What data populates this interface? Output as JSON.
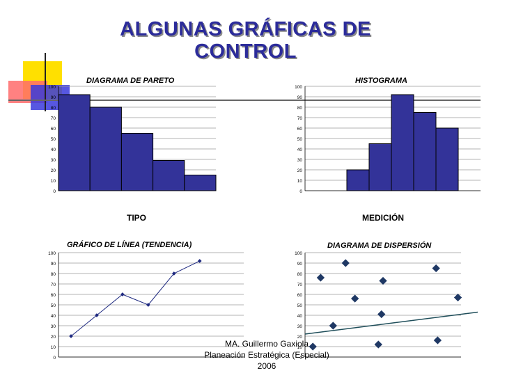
{
  "slide": {
    "title_line1": "ALGUNAS GRÁFICAS DE",
    "title_line2": "CONTROL",
    "footer_line1": "MA. Guillermo Gaxiola",
    "footer_line2": "Planeación Estratégica (Especial)",
    "footer_line3": "2006",
    "colors": {
      "title": "#2b2b9a",
      "bars": "#333399",
      "points": "#1f3864",
      "deco_yellow": "#ffe000",
      "deco_red": "#ff5a5a",
      "deco_blue": "#3333cc"
    }
  },
  "chart_data": [
    {
      "type": "bar",
      "title": "DIAGRAMA DE PARETO",
      "xlabel": "TIPO",
      "ylabel": "",
      "ylim": [
        0,
        100
      ],
      "ticks": [
        "0",
        "10",
        "20",
        "30",
        "40",
        "50",
        "60",
        "70",
        "80",
        "90",
        "100"
      ],
      "values": [
        92,
        80,
        55,
        29,
        15
      ]
    },
    {
      "type": "bar",
      "title": "HISTOGRAMA",
      "xlabel": "MEDICIÓN",
      "ylabel": "",
      "ylim": [
        0,
        100
      ],
      "ticks": [
        "0",
        "10",
        "20",
        "30",
        "40",
        "50",
        "60",
        "70",
        "80",
        "90",
        "100"
      ],
      "values": [
        20,
        45,
        92,
        75,
        60
      ]
    },
    {
      "type": "line",
      "title": "GRÁFICO DE LÍNEA (TENDENCIA)",
      "xlabel": "",
      "ylabel": "",
      "ylim": [
        0,
        100
      ],
      "ticks": [
        "0",
        "10",
        "20",
        "30",
        "40",
        "50",
        "60",
        "70",
        "80",
        "90",
        "100"
      ],
      "x": [
        1,
        2,
        3,
        4,
        5,
        6
      ],
      "values": [
        20,
        40,
        60,
        50,
        80,
        92
      ]
    },
    {
      "type": "scatter",
      "title": "DIAGRAMA DE DISPERSIÓN",
      "xlabel": "",
      "ylabel": "",
      "ylim": [
        0,
        100
      ],
      "xlim": [
        0,
        10
      ],
      "ticks": [
        "0",
        "10",
        "20",
        "30",
        "40",
        "50",
        "60",
        "70",
        "80",
        "90",
        "100"
      ],
      "points": [
        [
          0.5,
          10
        ],
        [
          1,
          76
        ],
        [
          1.8,
          30
        ],
        [
          2.6,
          90
        ],
        [
          3.2,
          56
        ],
        [
          4.7,
          12
        ],
        [
          4.9,
          41
        ],
        [
          5.0,
          73
        ],
        [
          8.4,
          85
        ],
        [
          8.5,
          16
        ],
        [
          9.8,
          57
        ]
      ],
      "trendline": [
        [
          0,
          22
        ],
        [
          10,
          43
        ]
      ]
    }
  ]
}
